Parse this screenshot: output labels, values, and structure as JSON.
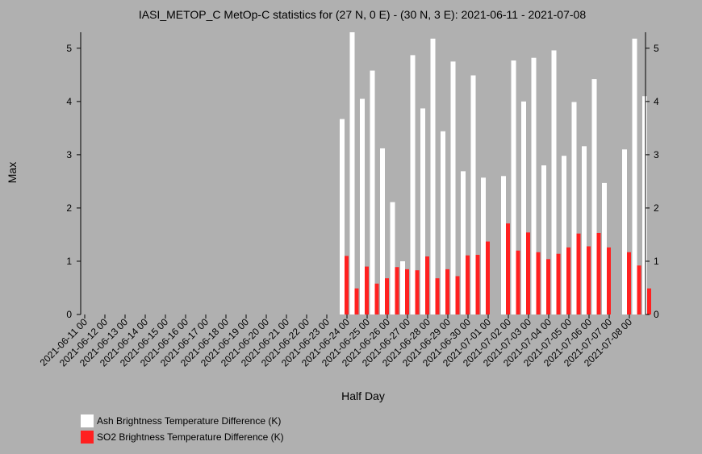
{
  "colors": {
    "background": "#b0b0b0",
    "ash": "#ffffff",
    "so2": "#ff2020"
  },
  "chart_data": {
    "type": "bar",
    "title": "IASI_METOP_C MetOp-C statistics for (27 N, 0 E) - (30 N, 3 E): 2021-06-11 - 2021-07-08",
    "xlabel": "Half Day",
    "ylabel": "Max",
    "ylim": [
      0,
      5.3
    ],
    "yticks": [
      0,
      1,
      2,
      3,
      4,
      5
    ],
    "grid": false,
    "legend_position": "bottom-left",
    "x_tick_labels": [
      "2021-06-11 00",
      "2021-06-12 00",
      "2021-06-13 00",
      "2021-06-14 00",
      "2021-06-15 00",
      "2021-06-16 00",
      "2021-06-17 00",
      "2021-06-18 00",
      "2021-06-19 00",
      "2021-06-20 00",
      "2021-06-21 00",
      "2021-06-22 00",
      "2021-06-23 00",
      "2021-06-24 00",
      "2021-06-25 00",
      "2021-06-26 00",
      "2021-06-27 00",
      "2021-06-28 00",
      "2021-06-29 00",
      "2021-06-30 00",
      "2021-07-01 00",
      "2021-07-02 00",
      "2021-07-03 00",
      "2021-07-04 00",
      "2021-07-05 00",
      "2021-07-06 00",
      "2021-07-07 00",
      "2021-07-08 00"
    ],
    "categories": [
      "2021-06-11 00",
      "2021-06-11 12",
      "2021-06-12 00",
      "2021-06-12 12",
      "2021-06-13 00",
      "2021-06-13 12",
      "2021-06-14 00",
      "2021-06-14 12",
      "2021-06-15 00",
      "2021-06-15 12",
      "2021-06-16 00",
      "2021-06-16 12",
      "2021-06-17 00",
      "2021-06-17 12",
      "2021-06-18 00",
      "2021-06-18 12",
      "2021-06-19 00",
      "2021-06-19 12",
      "2021-06-20 00",
      "2021-06-20 12",
      "2021-06-21 00",
      "2021-06-21 12",
      "2021-06-22 00",
      "2021-06-22 12",
      "2021-06-23 00",
      "2021-06-23 12",
      "2021-06-24 00",
      "2021-06-24 12",
      "2021-06-25 00",
      "2021-06-25 12",
      "2021-06-26 00",
      "2021-06-26 12",
      "2021-06-27 00",
      "2021-06-27 12",
      "2021-06-28 00",
      "2021-06-28 12",
      "2021-06-29 00",
      "2021-06-29 12",
      "2021-06-30 00",
      "2021-06-30 12",
      "2021-07-01 00",
      "2021-07-01 12",
      "2021-07-02 00",
      "2021-07-02 12",
      "2021-07-03 00",
      "2021-07-03 12",
      "2021-07-04 00",
      "2021-07-04 12",
      "2021-07-05 00",
      "2021-07-05 12",
      "2021-07-06 00",
      "2021-07-06 12",
      "2021-07-07 00",
      "2021-07-07 12",
      "2021-07-08 00",
      "2021-07-08 12"
    ],
    "series": [
      {
        "name": "Ash Brightness Temperature Difference (K)",
        "values": [
          null,
          null,
          null,
          null,
          null,
          null,
          null,
          null,
          null,
          null,
          null,
          null,
          null,
          null,
          null,
          null,
          null,
          null,
          null,
          null,
          null,
          null,
          null,
          null,
          null,
          3.67,
          5.3,
          4.05,
          4.58,
          3.12,
          2.11,
          1.0,
          4.87,
          3.87,
          5.18,
          3.44,
          4.75,
          2.69,
          4.49,
          2.57,
          null,
          2.6,
          4.77,
          4.0,
          4.82,
          2.8,
          4.96,
          2.98,
          3.99,
          3.16,
          4.42,
          2.47,
          null,
          3.1,
          5.18,
          4.1
        ]
      },
      {
        "name": "SO2 Brightness Temperature Difference (K)",
        "values": [
          null,
          null,
          null,
          null,
          null,
          null,
          null,
          null,
          null,
          null,
          null,
          null,
          null,
          null,
          null,
          null,
          null,
          null,
          null,
          null,
          null,
          null,
          null,
          null,
          null,
          1.1,
          0.49,
          0.9,
          0.58,
          0.68,
          0.89,
          0.85,
          0.83,
          1.09,
          0.68,
          0.85,
          0.72,
          1.11,
          1.12,
          1.37,
          null,
          1.71,
          1.2,
          1.54,
          1.17,
          1.04,
          1.14,
          1.26,
          1.52,
          1.28,
          1.53,
          1.26,
          null,
          1.17,
          0.92,
          0.49
        ]
      }
    ]
  }
}
